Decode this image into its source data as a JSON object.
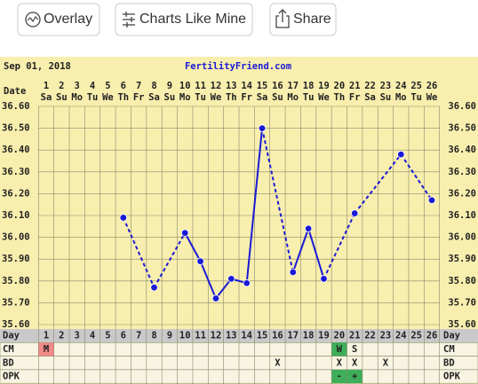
{
  "buttons": [
    "Overlay",
    "Charts Like Mine",
    "Share"
  ],
  "chart_data": {
    "type": "line",
    "date": "Sep 01, 2018",
    "site": "FertilityFriend.com",
    "date_label": "Date",
    "day_label": "Day",
    "categories": [
      1,
      2,
      3,
      4,
      5,
      6,
      7,
      8,
      9,
      10,
      11,
      12,
      13,
      14,
      15,
      16,
      17,
      18,
      19,
      20,
      21,
      22,
      23,
      24,
      25,
      26
    ],
    "weekdays": [
      "Sa",
      "Su",
      "Mo",
      "Tu",
      "We",
      "Th",
      "Fr",
      "Sa",
      "Su",
      "Mo",
      "Tu",
      "We",
      "Th",
      "Fr",
      "Sa",
      "Su",
      "Mo",
      "Tu",
      "We",
      "Th",
      "Fr",
      "Sa",
      "Su",
      "Mo",
      "Tu",
      "We"
    ],
    "values": [
      null,
      null,
      null,
      null,
      null,
      36.09,
      null,
      35.77,
      null,
      36.02,
      35.89,
      35.72,
      35.81,
      35.79,
      36.5,
      null,
      35.84,
      36.04,
      35.81,
      null,
      36.11,
      null,
      null,
      36.38,
      null,
      36.17
    ],
    "color": "#1a1ad6",
    "ylim": [
      35.6,
      36.6
    ],
    "yticks": [
      {
        "value": 35.6,
        "label": "35.60"
      },
      {
        "value": 35.7,
        "label": "35.70"
      },
      {
        "value": 35.8,
        "label": "35.80"
      },
      {
        "value": 35.9,
        "label": "35.90"
      },
      {
        "value": 36.0,
        "label": "36.00"
      },
      {
        "value": 36.1,
        "label": "36.10"
      },
      {
        "value": 36.2,
        "label": "36.20"
      },
      {
        "value": 36.3,
        "label": "36.30"
      },
      {
        "value": 36.4,
        "label": "36.40"
      },
      {
        "value": 36.5,
        "label": "36.50"
      },
      {
        "value": 36.6,
        "label": "36.60"
      }
    ],
    "grid": true,
    "rows": [
      {
        "label": "CM",
        "cells": [
          "M",
          null,
          null,
          null,
          null,
          null,
          null,
          null,
          null,
          null,
          null,
          null,
          null,
          null,
          null,
          null,
          null,
          null,
          null,
          "W",
          "S",
          null,
          null,
          null,
          null,
          null
        ],
        "fills": [
          "#f28a8a",
          null,
          null,
          null,
          null,
          null,
          null,
          null,
          null,
          null,
          null,
          null,
          null,
          null,
          null,
          null,
          null,
          null,
          null,
          "#3fae5a",
          null,
          null,
          null,
          null,
          null,
          null
        ]
      },
      {
        "label": "BD",
        "cells": [
          null,
          null,
          null,
          null,
          null,
          null,
          null,
          null,
          null,
          null,
          null,
          null,
          null,
          null,
          null,
          "X",
          null,
          null,
          null,
          "X",
          "X",
          null,
          "X",
          null,
          null,
          null
        ],
        "fills": [
          null,
          null,
          null,
          null,
          null,
          null,
          null,
          null,
          null,
          null,
          null,
          null,
          null,
          null,
          null,
          null,
          null,
          null,
          null,
          null,
          null,
          null,
          null,
          null,
          null,
          null
        ]
      },
      {
        "label": "OPK",
        "cells": [
          null,
          null,
          null,
          null,
          null,
          null,
          null,
          null,
          null,
          null,
          null,
          null,
          null,
          null,
          null,
          null,
          null,
          null,
          null,
          "-",
          "+",
          null,
          null,
          null,
          null,
          null
        ],
        "fills": [
          null,
          null,
          null,
          null,
          null,
          null,
          null,
          null,
          null,
          null,
          null,
          null,
          null,
          null,
          null,
          null,
          null,
          null,
          null,
          "#3fae5a",
          "#3fae5a",
          null,
          null,
          null,
          null,
          null
        ]
      }
    ]
  }
}
